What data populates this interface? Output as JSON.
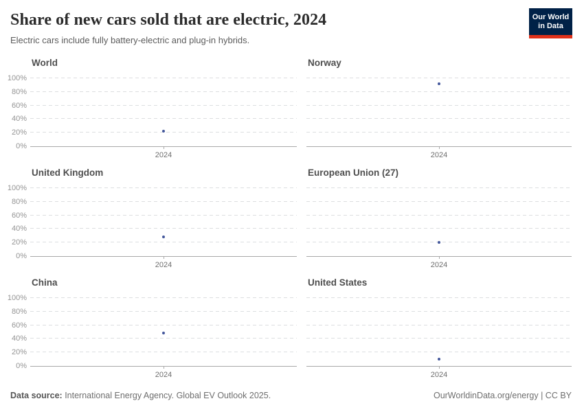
{
  "header": {
    "title": "Share of new cars sold that are electric, 2024",
    "subtitle": "Electric cars include fully battery-electric and plug-in hybrids.",
    "logo": {
      "line1": "Our World",
      "line2": "in Data",
      "bg_color": "#002147",
      "accent_color": "#e0311a"
    }
  },
  "chart_data": {
    "type": "scatter",
    "layout": "small-multiples 3 rows x 2 columns",
    "x": [
      "2024"
    ],
    "xtick": "2024",
    "ylim": [
      0,
      100
    ],
    "yticks": [
      "100%",
      "80%",
      "60%",
      "40%",
      "20%",
      "0%"
    ],
    "grid": "horizontal dashed gridlines at 20% intervals",
    "point_color": "#44589c",
    "facets": [
      {
        "title": "World",
        "year": 2024,
        "value": 22
      },
      {
        "title": "Norway",
        "year": 2024,
        "value": 92
      },
      {
        "title": "United Kingdom",
        "year": 2024,
        "value": 28
      },
      {
        "title": "European Union (27)",
        "year": 2024,
        "value": 20
      },
      {
        "title": "China",
        "year": 2024,
        "value": 48
      },
      {
        "title": "United States",
        "year": 2024,
        "value": 10
      }
    ]
  },
  "footer": {
    "source_label": "Data source:",
    "source_text": " International Energy Agency. Global EV Outlook 2025.",
    "site": "OurWorldinData.org/energy",
    "separator": " | ",
    "license": "CC BY"
  }
}
